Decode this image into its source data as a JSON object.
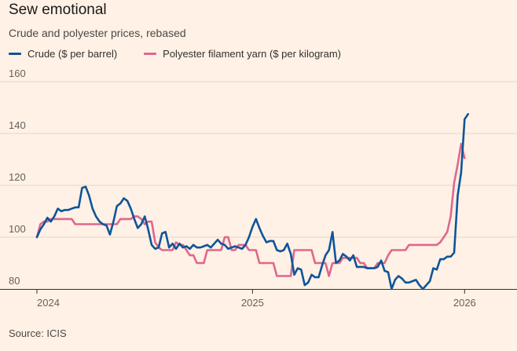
{
  "title": "Sew emotional",
  "subtitle": "Crude and polyester prices, rebased",
  "source": "Source: ICIS",
  "colors": {
    "background": "#FFF1E5",
    "crude": "#0F5499",
    "polyester": "#E0678C",
    "grid": "#E2D7CD",
    "axis": "#33302E"
  },
  "chart_data": {
    "type": "line",
    "title": "Sew emotional",
    "subtitle": "Crude and polyester prices, rebased",
    "xlabel": "",
    "ylabel": "",
    "xlim": [
      0,
      134
    ],
    "ylim": [
      80,
      160
    ],
    "y_ticks": [
      80,
      100,
      120,
      140,
      160
    ],
    "x_ticks": [
      {
        "label": "2024",
        "at": 0
      },
      {
        "label": "2025",
        "at": 62
      },
      {
        "label": "2026",
        "at": 123
      }
    ],
    "series": [
      {
        "name": "Crude ($ per barrel)",
        "color": "#0F5499",
        "values": [
          100,
          103,
          105,
          107.5,
          106,
          108,
          111,
          110,
          110.5,
          110.5,
          111,
          111.5,
          111.5,
          119,
          119.5,
          116,
          111,
          108,
          106,
          105,
          104.5,
          101,
          106,
          112,
          113,
          115,
          114,
          111,
          107,
          103.5,
          105,
          108,
          103,
          97,
          95.5,
          96,
          101.5,
          102,
          96,
          97.5,
          95.5,
          97.5,
          96,
          96.5,
          95.5,
          97,
          96,
          96,
          96.5,
          97,
          96,
          97.5,
          99,
          97.5,
          97,
          95.5,
          96,
          96.5,
          96,
          95.5,
          97,
          100,
          104,
          107,
          103.5,
          100.5,
          98,
          98.5,
          98.5,
          95,
          94.5,
          95,
          97.5,
          93.5,
          85.5,
          88,
          87.5,
          81.5,
          82.5,
          85.5,
          84.5,
          84.5,
          89,
          93,
          95,
          102,
          90,
          91,
          93.5,
          92.5,
          91,
          93,
          88.5,
          88.5,
          88.5,
          88,
          88,
          88,
          88.5,
          91,
          87,
          86.5,
          80,
          83.5,
          85,
          84,
          82.5,
          82.5,
          83,
          83.5,
          81.5,
          80,
          81.5,
          83,
          88,
          87.5,
          91.5,
          91.5,
          92.5,
          92.5,
          94,
          116,
          125,
          145.5,
          147.5
        ]
      },
      {
        "name": "Polyester filament yarn ($ per kilogram)",
        "color": "#E0678C",
        "values": [
          100,
          105,
          106,
          106,
          107,
          107,
          107,
          107,
          107,
          107,
          107,
          105,
          105,
          105,
          105,
          105,
          105,
          105,
          105,
          105,
          105,
          105,
          105,
          105,
          107,
          107,
          107,
          107,
          108,
          108,
          107,
          105,
          106,
          106,
          98,
          96,
          95,
          95,
          95,
          95,
          98,
          97,
          97,
          95,
          93,
          93,
          90,
          90,
          90,
          95,
          95,
          95,
          95,
          95,
          100,
          100,
          95,
          95,
          97,
          97,
          97,
          95,
          95,
          95,
          90,
          90,
          90,
          90,
          90,
          85,
          85,
          85,
          85,
          85,
          95,
          95,
          95,
          95,
          95,
          95,
          90,
          90,
          90,
          90,
          85,
          90,
          90,
          90,
          92,
          92,
          92,
          92,
          92,
          90,
          90,
          88,
          88,
          88,
          90,
          90,
          90,
          93,
          95,
          95,
          95,
          95,
          95,
          97,
          97,
          97,
          97,
          97,
          97,
          97,
          97,
          97,
          98,
          100,
          102,
          108,
          121,
          128,
          136,
          130.5
        ]
      }
    ]
  }
}
